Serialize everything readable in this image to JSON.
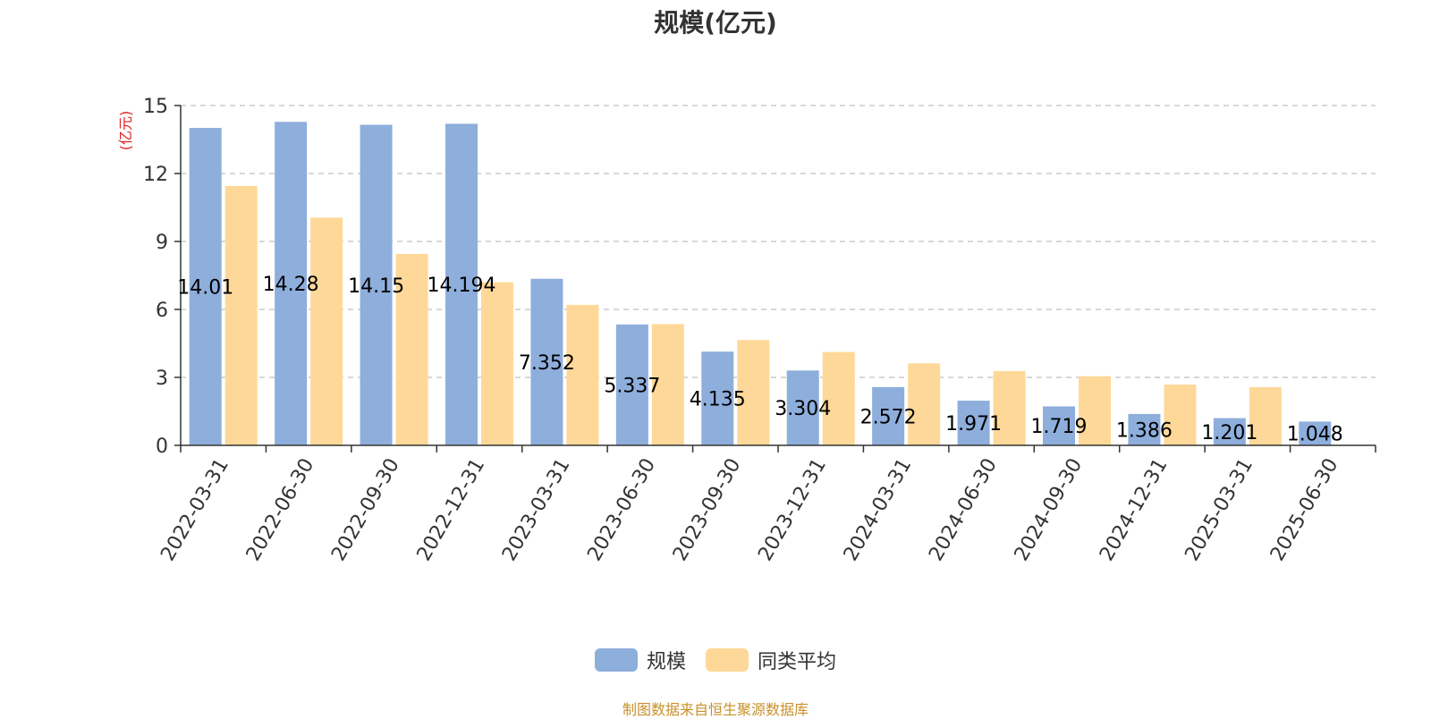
{
  "chart_data": {
    "type": "bar",
    "title": "规模(亿元)",
    "ylabel": "(亿元)",
    "xlabel": "",
    "ylim": [
      0,
      15
    ],
    "yticks": [
      0,
      3,
      6,
      9,
      12,
      15
    ],
    "grid": true,
    "legend_position": "bottom-center",
    "categories": [
      "2022-03-31",
      "2022-06-30",
      "2022-09-30",
      "2022-12-31",
      "2023-03-31",
      "2023-06-30",
      "2023-09-30",
      "2023-12-31",
      "2024-03-31",
      "2024-06-30",
      "2024-09-30",
      "2024-12-31",
      "2025-03-31",
      "2025-06-30"
    ],
    "series": [
      {
        "name": "规模",
        "color": "#8eaedc",
        "values": [
          14.01,
          14.28,
          14.15,
          14.194,
          7.352,
          5.337,
          4.135,
          3.304,
          2.572,
          1.971,
          1.719,
          1.386,
          1.201,
          1.048
        ],
        "labels": [
          "14.01",
          "14.28",
          "14.15",
          "14.194",
          "7.352",
          "5.337",
          "4.135",
          "3.304",
          "2.572",
          "1.971",
          "1.719",
          "1.386",
          "1.201",
          "1.048"
        ]
      },
      {
        "name": "同类平均",
        "color": "#fed898",
        "values": [
          11.45,
          10.05,
          8.45,
          7.2,
          6.2,
          5.35,
          4.65,
          4.12,
          3.62,
          3.28,
          3.05,
          2.68,
          2.57,
          null
        ]
      }
    ],
    "source_note": "制图数据来自恒生聚源数据库"
  }
}
